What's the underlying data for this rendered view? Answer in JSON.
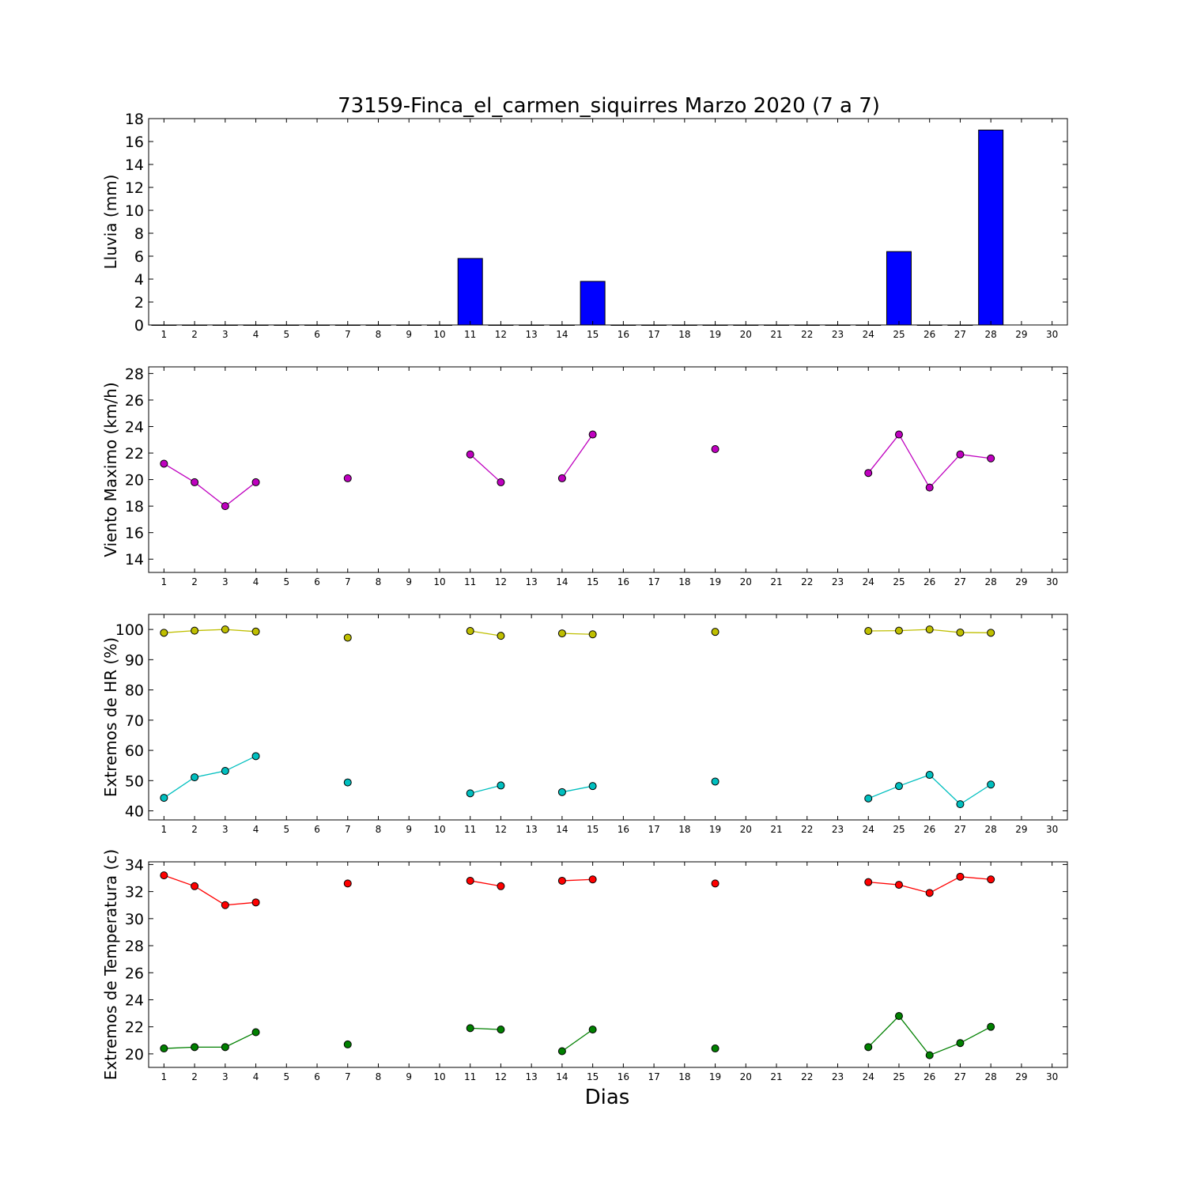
{
  "title": "73159-Finca_el_carmen_siquirres Marzo 2020  (7 a 7)",
  "xlabel": "Dias",
  "x_ticks": [
    1,
    2,
    3,
    4,
    5,
    6,
    7,
    8,
    9,
    10,
    11,
    12,
    13,
    14,
    15,
    16,
    17,
    18,
    19,
    20,
    21,
    22,
    23,
    24,
    25,
    26,
    27,
    28,
    29,
    30
  ],
  "chart_data": [
    {
      "type": "bar",
      "ylabel": "Lluvia (mm)",
      "ylim": [
        0,
        18
      ],
      "yticks": [
        0,
        2,
        4,
        6,
        8,
        10,
        12,
        14,
        16,
        18
      ],
      "xlim": [
        0.5,
        30.5
      ],
      "colors": {
        "bar": "#0000ff"
      },
      "series": [
        {
          "x": [
            1,
            2,
            3,
            4,
            5,
            6,
            7,
            8,
            9,
            10,
            11,
            12,
            13,
            14,
            15,
            16,
            17,
            18,
            19,
            20,
            21,
            22,
            23,
            24,
            25,
            26,
            27,
            28
          ],
          "values": [
            0,
            0,
            0,
            0,
            0,
            0,
            0,
            0,
            0,
            0,
            5.8,
            0,
            0,
            0,
            3.8,
            0,
            0,
            0,
            0,
            0,
            0,
            0,
            0,
            0,
            6.4,
            0,
            0,
            17.0
          ]
        }
      ]
    },
    {
      "type": "line",
      "ylabel": "Viento Maximo (km/h)",
      "ylim": [
        13,
        28.5
      ],
      "yticks": [
        14,
        16,
        18,
        20,
        22,
        24,
        26,
        28
      ],
      "xlim": [
        0.5,
        30.5
      ],
      "series": [
        {
          "color": "#bf00bf",
          "points": [
            [
              1,
              21.2
            ],
            [
              2,
              19.8
            ],
            [
              3,
              18.0
            ],
            [
              4,
              19.8
            ],
            [
              5,
              null
            ],
            [
              6,
              null
            ],
            [
              7,
              20.1
            ],
            [
              8,
              null
            ],
            [
              9,
              null
            ],
            [
              10,
              null
            ],
            [
              11,
              21.9
            ],
            [
              12,
              19.8
            ],
            [
              13,
              null
            ],
            [
              14,
              20.1
            ],
            [
              15,
              23.4
            ],
            [
              16,
              null
            ],
            [
              17,
              null
            ],
            [
              18,
              null
            ],
            [
              19,
              22.3
            ],
            [
              20,
              null
            ],
            [
              21,
              null
            ],
            [
              22,
              null
            ],
            [
              23,
              null
            ],
            [
              24,
              20.5
            ],
            [
              25,
              23.4
            ],
            [
              26,
              19.4
            ],
            [
              27,
              21.9
            ],
            [
              28,
              21.6
            ]
          ]
        }
      ]
    },
    {
      "type": "line",
      "ylabel": "Extremos de HR (%)",
      "ylim": [
        37,
        105
      ],
      "yticks": [
        40,
        50,
        60,
        70,
        80,
        90,
        100
      ],
      "xlim": [
        0.5,
        30.5
      ],
      "series": [
        {
          "color": "#bfbf00",
          "points": [
            [
              1,
              98.9
            ],
            [
              2,
              99.6
            ],
            [
              3,
              100
            ],
            [
              4,
              99.3
            ],
            [
              5,
              null
            ],
            [
              6,
              null
            ],
            [
              7,
              97.3
            ],
            [
              8,
              null
            ],
            [
              9,
              null
            ],
            [
              10,
              null
            ],
            [
              11,
              99.5
            ],
            [
              12,
              97.9
            ],
            [
              13,
              null
            ],
            [
              14,
              98.7
            ],
            [
              15,
              98.4
            ],
            [
              16,
              null
            ],
            [
              17,
              null
            ],
            [
              18,
              null
            ],
            [
              19,
              99.2
            ],
            [
              20,
              null
            ],
            [
              21,
              null
            ],
            [
              22,
              null
            ],
            [
              23,
              null
            ],
            [
              24,
              99.5
            ],
            [
              25,
              99.6
            ],
            [
              26,
              100
            ],
            [
              27,
              99.0
            ],
            [
              28,
              98.9
            ]
          ]
        },
        {
          "color": "#00bfbf",
          "points": [
            [
              1,
              44.3
            ],
            [
              2,
              51.1
            ],
            [
              3,
              53.2
            ],
            [
              4,
              58.1
            ],
            [
              5,
              null
            ],
            [
              6,
              null
            ],
            [
              7,
              49.4
            ],
            [
              8,
              null
            ],
            [
              9,
              null
            ],
            [
              10,
              null
            ],
            [
              11,
              45.8
            ],
            [
              12,
              48.4
            ],
            [
              13,
              null
            ],
            [
              14,
              46.2
            ],
            [
              15,
              48.2
            ],
            [
              16,
              null
            ],
            [
              17,
              null
            ],
            [
              18,
              null
            ],
            [
              19,
              49.7
            ],
            [
              20,
              null
            ],
            [
              21,
              null
            ],
            [
              22,
              null
            ],
            [
              23,
              null
            ],
            [
              24,
              44.1
            ],
            [
              25,
              48.2
            ],
            [
              26,
              51.9
            ],
            [
              27,
              42.2
            ],
            [
              28,
              48.7
            ]
          ]
        }
      ]
    },
    {
      "type": "line",
      "ylabel": "Extremos de Temperatura (c)",
      "ylim": [
        19,
        34.2
      ],
      "yticks": [
        20,
        22,
        24,
        26,
        28,
        30,
        32,
        34
      ],
      "xlim": [
        0.5,
        30.5
      ],
      "series": [
        {
          "color": "#ff0000",
          "points": [
            [
              1,
              33.2
            ],
            [
              2,
              32.4
            ],
            [
              3,
              31.0
            ],
            [
              4,
              31.2
            ],
            [
              5,
              null
            ],
            [
              6,
              null
            ],
            [
              7,
              32.6
            ],
            [
              8,
              null
            ],
            [
              9,
              null
            ],
            [
              10,
              null
            ],
            [
              11,
              32.8
            ],
            [
              12,
              32.4
            ],
            [
              13,
              null
            ],
            [
              14,
              32.8
            ],
            [
              15,
              32.9
            ],
            [
              16,
              null
            ],
            [
              17,
              null
            ],
            [
              18,
              null
            ],
            [
              19,
              32.6
            ],
            [
              20,
              null
            ],
            [
              21,
              null
            ],
            [
              22,
              null
            ],
            [
              23,
              null
            ],
            [
              24,
              32.7
            ],
            [
              25,
              32.5
            ],
            [
              26,
              31.9
            ],
            [
              27,
              33.1
            ],
            [
              28,
              32.9
            ]
          ]
        },
        {
          "color": "#008000",
          "points": [
            [
              1,
              20.4
            ],
            [
              2,
              20.5
            ],
            [
              3,
              20.5
            ],
            [
              4,
              21.6
            ],
            [
              5,
              null
            ],
            [
              6,
              null
            ],
            [
              7,
              20.7
            ],
            [
              8,
              null
            ],
            [
              9,
              null
            ],
            [
              10,
              null
            ],
            [
              11,
              21.9
            ],
            [
              12,
              21.8
            ],
            [
              13,
              null
            ],
            [
              14,
              20.2
            ],
            [
              15,
              21.8
            ],
            [
              16,
              null
            ],
            [
              17,
              null
            ],
            [
              18,
              null
            ],
            [
              19,
              20.4
            ],
            [
              20,
              null
            ],
            [
              21,
              null
            ],
            [
              22,
              null
            ],
            [
              23,
              null
            ],
            [
              24,
              20.5
            ],
            [
              25,
              22.8
            ],
            [
              26,
              19.9
            ],
            [
              27,
              20.8
            ],
            [
              28,
              22.0
            ]
          ]
        }
      ]
    }
  ]
}
